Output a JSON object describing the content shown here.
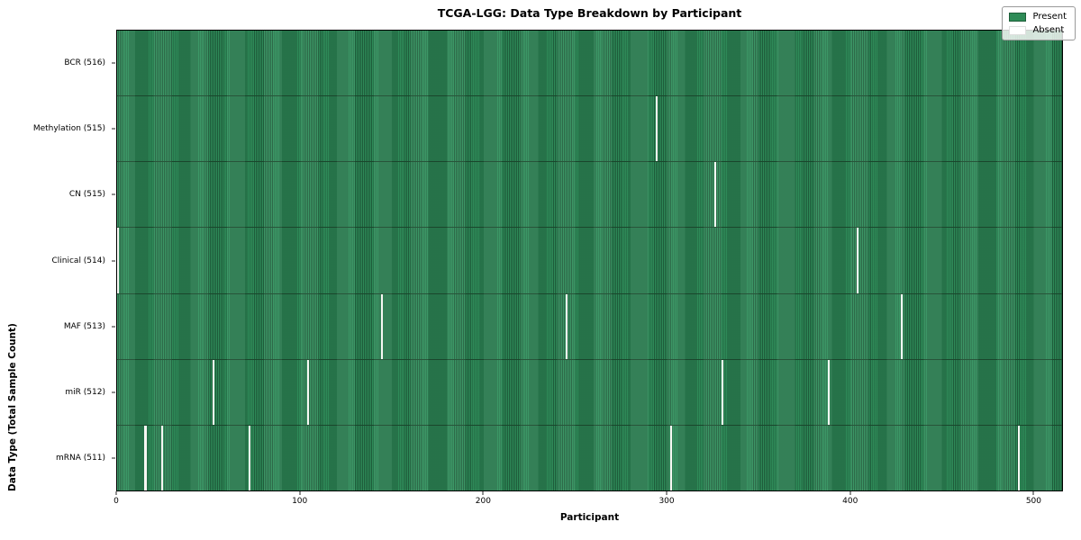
{
  "chart_data": {
    "type": "heatmap",
    "title": "TCGA-LGG: Data Type Breakdown by Participant",
    "xlabel": "Participant",
    "ylabel": "Data Type (Total Sample Count)",
    "x_range": [
      0,
      516
    ],
    "x_ticks": [
      0,
      100,
      200,
      300,
      400,
      500
    ],
    "total_participants": 516,
    "grid": false,
    "legend_position": "upper right",
    "legend_items": [
      {
        "label": "Present",
        "color": "#2e8b57"
      },
      {
        "label": "Absent",
        "color": "#ffffff"
      }
    ],
    "colors": {
      "present_fill": "#2e8b57",
      "present_edge": "#20603d",
      "absent_fill": "#ffffff"
    },
    "rows": [
      {
        "label": "BCR (516)",
        "data_type": "BCR",
        "sample_count": 516,
        "absent_participants": []
      },
      {
        "label": "Methylation (515)",
        "data_type": "Methylation",
        "sample_count": 515,
        "absent_participants": [
          294
        ]
      },
      {
        "label": "CN (515)",
        "data_type": "CN",
        "sample_count": 515,
        "absent_participants": [
          326
        ]
      },
      {
        "label": "Clinical (514)",
        "data_type": "Clinical",
        "sample_count": 514,
        "absent_participants": [
          0,
          404
        ]
      },
      {
        "label": "MAF (513)",
        "data_type": "MAF",
        "sample_count": 513,
        "absent_participants": [
          144,
          245,
          428
        ]
      },
      {
        "label": "miR (512)",
        "data_type": "miR",
        "sample_count": 512,
        "absent_participants": [
          52,
          104,
          330,
          388
        ]
      },
      {
        "label": "mRNA (511)",
        "data_type": "mRNA",
        "sample_count": 511,
        "absent_participants": [
          15,
          24,
          72,
          302,
          492
        ]
      }
    ]
  }
}
